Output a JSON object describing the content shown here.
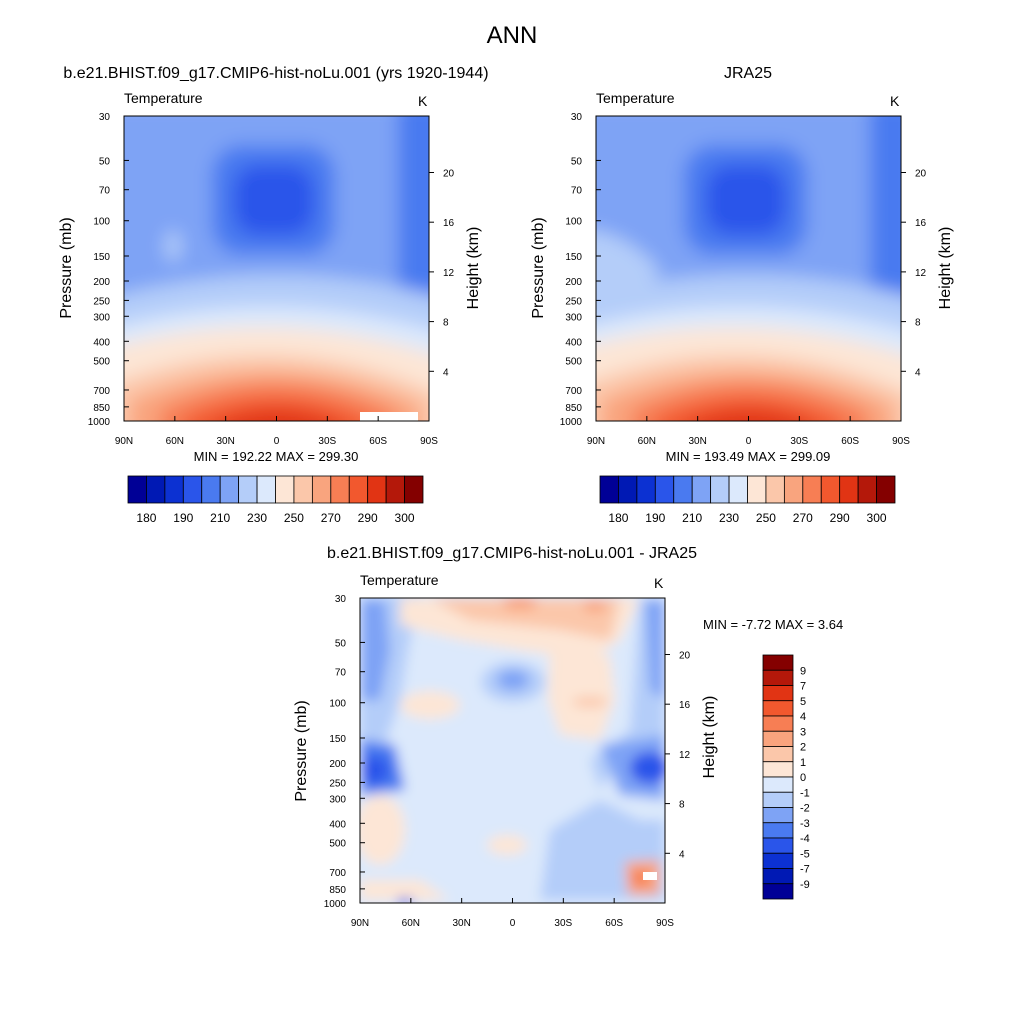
{
  "figure_title": "ANN",
  "colors": {
    "abs_levels": [
      "#000096",
      "#0019b4",
      "#0c31d2",
      "#2a55ea",
      "#4a7af0",
      "#7ea3f5",
      "#b4cdf9",
      "#dce9fc",
      "#fde6d6",
      "#fbc7aa",
      "#f9a47e",
      "#f77e54",
      "#f2582e",
      "#e13414",
      "#b4180a",
      "#840000"
    ],
    "diff_levels": [
      "#000096",
      "#0019b4",
      "#0c31d2",
      "#2a55ea",
      "#4a7af0",
      "#7ea3f5",
      "#b4cdf9",
      "#dce9fc",
      "#fde6d6",
      "#fbc7aa",
      "#f9a47e",
      "#f77e54",
      "#f2582e",
      "#e13414",
      "#b4180a",
      "#840000"
    ]
  },
  "chart_data": [
    {
      "type": "heatmap",
      "title": "b.e21.BHIST.f09_g17.CMIP6-hist-noLu.001 (yrs 1920-1944)",
      "left_label": "Temperature",
      "units": "K",
      "xlabel": "",
      "ylabel": "Pressure (mb)",
      "ylabel_right": "Height (km)",
      "x_ticks": [
        "90N",
        "60N",
        "30N",
        "0",
        "30S",
        "60S",
        "90S"
      ],
      "y_ticks": [
        "30",
        "50",
        "70",
        "100",
        "150",
        "200",
        "250",
        "300",
        "400",
        "500",
        "700",
        "850",
        "1000"
      ],
      "y_right_ticks": [
        "20",
        "16",
        "12",
        "8",
        "4"
      ],
      "min_max": "MIN = 192.22  MAX = 299.30",
      "colorbar_labels": [
        "180",
        "190",
        "210",
        "230",
        "250",
        "270",
        "290",
        "300"
      ],
      "field_min": 192.22,
      "field_max": 299.3
    },
    {
      "type": "heatmap",
      "title": "JRA25",
      "left_label": "Temperature",
      "units": "K",
      "xlabel": "",
      "ylabel": "Pressure (mb)",
      "ylabel_right": "Height (km)",
      "x_ticks": [
        "90N",
        "60N",
        "30N",
        "0",
        "30S",
        "60S",
        "90S"
      ],
      "y_ticks": [
        "30",
        "50",
        "70",
        "100",
        "150",
        "200",
        "250",
        "300",
        "400",
        "500",
        "700",
        "850",
        "1000"
      ],
      "y_right_ticks": [
        "20",
        "16",
        "12",
        "8",
        "4"
      ],
      "min_max": "MIN = 193.49  MAX = 299.09",
      "colorbar_labels": [
        "180",
        "190",
        "210",
        "230",
        "250",
        "270",
        "290",
        "300"
      ],
      "field_min": 193.49,
      "field_max": 299.09
    },
    {
      "type": "heatmap",
      "title": "b.e21.BHIST.f09_g17.CMIP6-hist-noLu.001 - JRA25",
      "left_label": "Temperature",
      "units": "K",
      "xlabel": "",
      "ylabel": "Pressure (mb)",
      "ylabel_right": "Height (km)",
      "x_ticks": [
        "90N",
        "60N",
        "30N",
        "0",
        "30S",
        "60S",
        "90S"
      ],
      "y_ticks": [
        "30",
        "50",
        "70",
        "100",
        "150",
        "200",
        "250",
        "300",
        "400",
        "500",
        "700",
        "850",
        "1000"
      ],
      "y_right_ticks": [
        "20",
        "16",
        "12",
        "8",
        "4"
      ],
      "min_max": "MIN =  -7.72  MAX =   3.64",
      "colorbar_labels": [
        "9",
        "7",
        "5",
        "4",
        "3",
        "2",
        "1",
        "0",
        "-1",
        "-2",
        "-3",
        "-4",
        "-5",
        "-7",
        "-9"
      ],
      "field_min": -7.72,
      "field_max": 3.64
    }
  ]
}
